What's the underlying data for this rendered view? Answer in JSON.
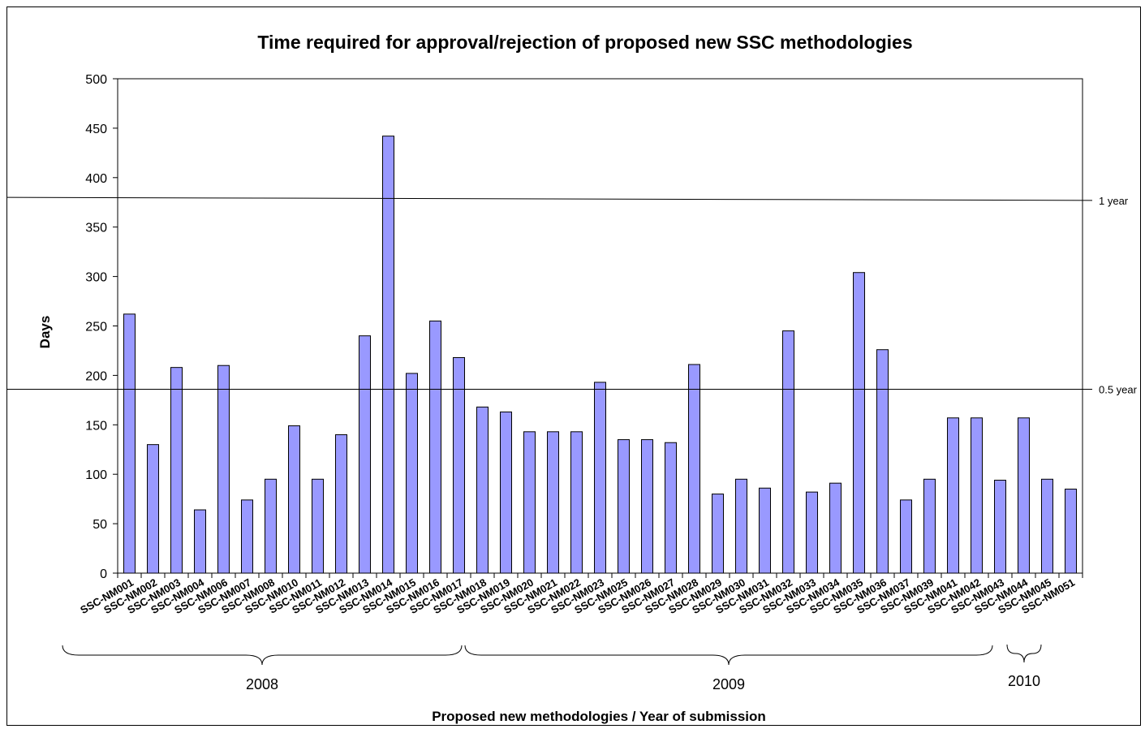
{
  "chart_data": {
    "type": "bar",
    "title": "Time required for approval/rejection of proposed new SSC methodologies",
    "xlabel": "Proposed new methodologies / Year of submission",
    "ylabel": "Days",
    "ylim": [
      0,
      500
    ],
    "yticks": [
      "0",
      "50",
      "100",
      "150",
      "200",
      "250",
      "300",
      "350",
      "400",
      "450",
      "500"
    ],
    "bar_color": "#9999ff",
    "categories": [
      "SSC-NM001",
      "SSC-NM002",
      "SSC-NM003",
      "SSC-NM004",
      "SSC-NM006",
      "SSC-NM007",
      "SSC-NM008",
      "SSC-NM010",
      "SSC-NM011",
      "SSC-NM012",
      "SSC-NM013",
      "SSC-NM014",
      "SSC-NM015",
      "SSC-NM016",
      "SSC-NM017",
      "SSC-NM018",
      "SSC-NM019",
      "SSC-NM020",
      "SSC-NM021",
      "SSC-NM022",
      "SSC-NM023",
      "SSC-NM025",
      "SSC-NM026",
      "SSC-NM027",
      "SSC-NM028",
      "SSC-NM029",
      "SSC-NM030",
      "SSC-NM031",
      "SSC-NM032",
      "SSC-NM033",
      "SSC-NM034",
      "SSC-NM035",
      "SSC-NM036",
      "SSC-NM037",
      "SSC-NM039",
      "SSC-NM041",
      "SSC-NM042",
      "SSC-NM043",
      "SSC-NM044",
      "SSC-NM045",
      "SSC-NM051"
    ],
    "values": [
      262,
      130,
      208,
      64,
      210,
      74,
      95,
      149,
      95,
      140,
      240,
      442,
      202,
      255,
      218,
      168,
      163,
      143,
      143,
      143,
      193,
      135,
      135,
      132,
      211,
      80,
      95,
      86,
      245,
      82,
      91,
      304,
      226,
      74,
      95,
      157,
      157,
      94,
      157,
      95,
      85
    ],
    "reference_lines": [
      {
        "label": "1 year",
        "value": 380,
        "value_end": 377
      },
      {
        "label": "0.5 year",
        "value": 186,
        "value_end": 186
      }
    ],
    "year_groups": [
      {
        "label": "2008",
        "from": 0,
        "to": 15
      },
      {
        "label": "2009",
        "from": 15,
        "to": 38
      },
      {
        "label": "2010",
        "from": 38,
        "to": 40
      }
    ],
    "grid": false,
    "legend": "none"
  }
}
